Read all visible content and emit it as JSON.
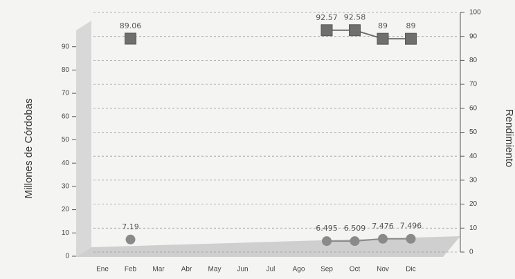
{
  "chart_data": {
    "type": "line",
    "y_label": "Millones de Córdobas",
    "y2_label": "Rendimiento",
    "categories": [
      "Ene",
      "Feb",
      "Mar",
      "Abr",
      "May",
      "Jun",
      "Jul",
      "Ago",
      "Sep",
      "Oct",
      "Nov",
      "Dic"
    ],
    "series": [
      {
        "color": "#8a8a8a",
        "marker": "circle",
        "values": [
          null,
          7.19,
          null,
          null,
          null,
          null,
          null,
          null,
          6.495,
          6.509,
          7.476,
          7.496
        ]
      },
      {
        "color": "#6f6f6f",
        "marker": "square",
        "axis": "y2",
        "values": [
          null,
          89.06,
          null,
          null,
          null,
          null,
          null,
          null,
          92.57,
          92.58,
          89,
          89
        ]
      }
    ],
    "ylim": [
      0,
      100
    ],
    "yticks": [
      0,
      10,
      20,
      30,
      40,
      50,
      60,
      70,
      80,
      90
    ],
    "y2lim": [
      0,
      100
    ],
    "y2ticks": [
      0,
      10,
      20,
      30,
      40,
      50,
      60,
      70,
      80,
      90,
      100
    ],
    "grid": true
  }
}
